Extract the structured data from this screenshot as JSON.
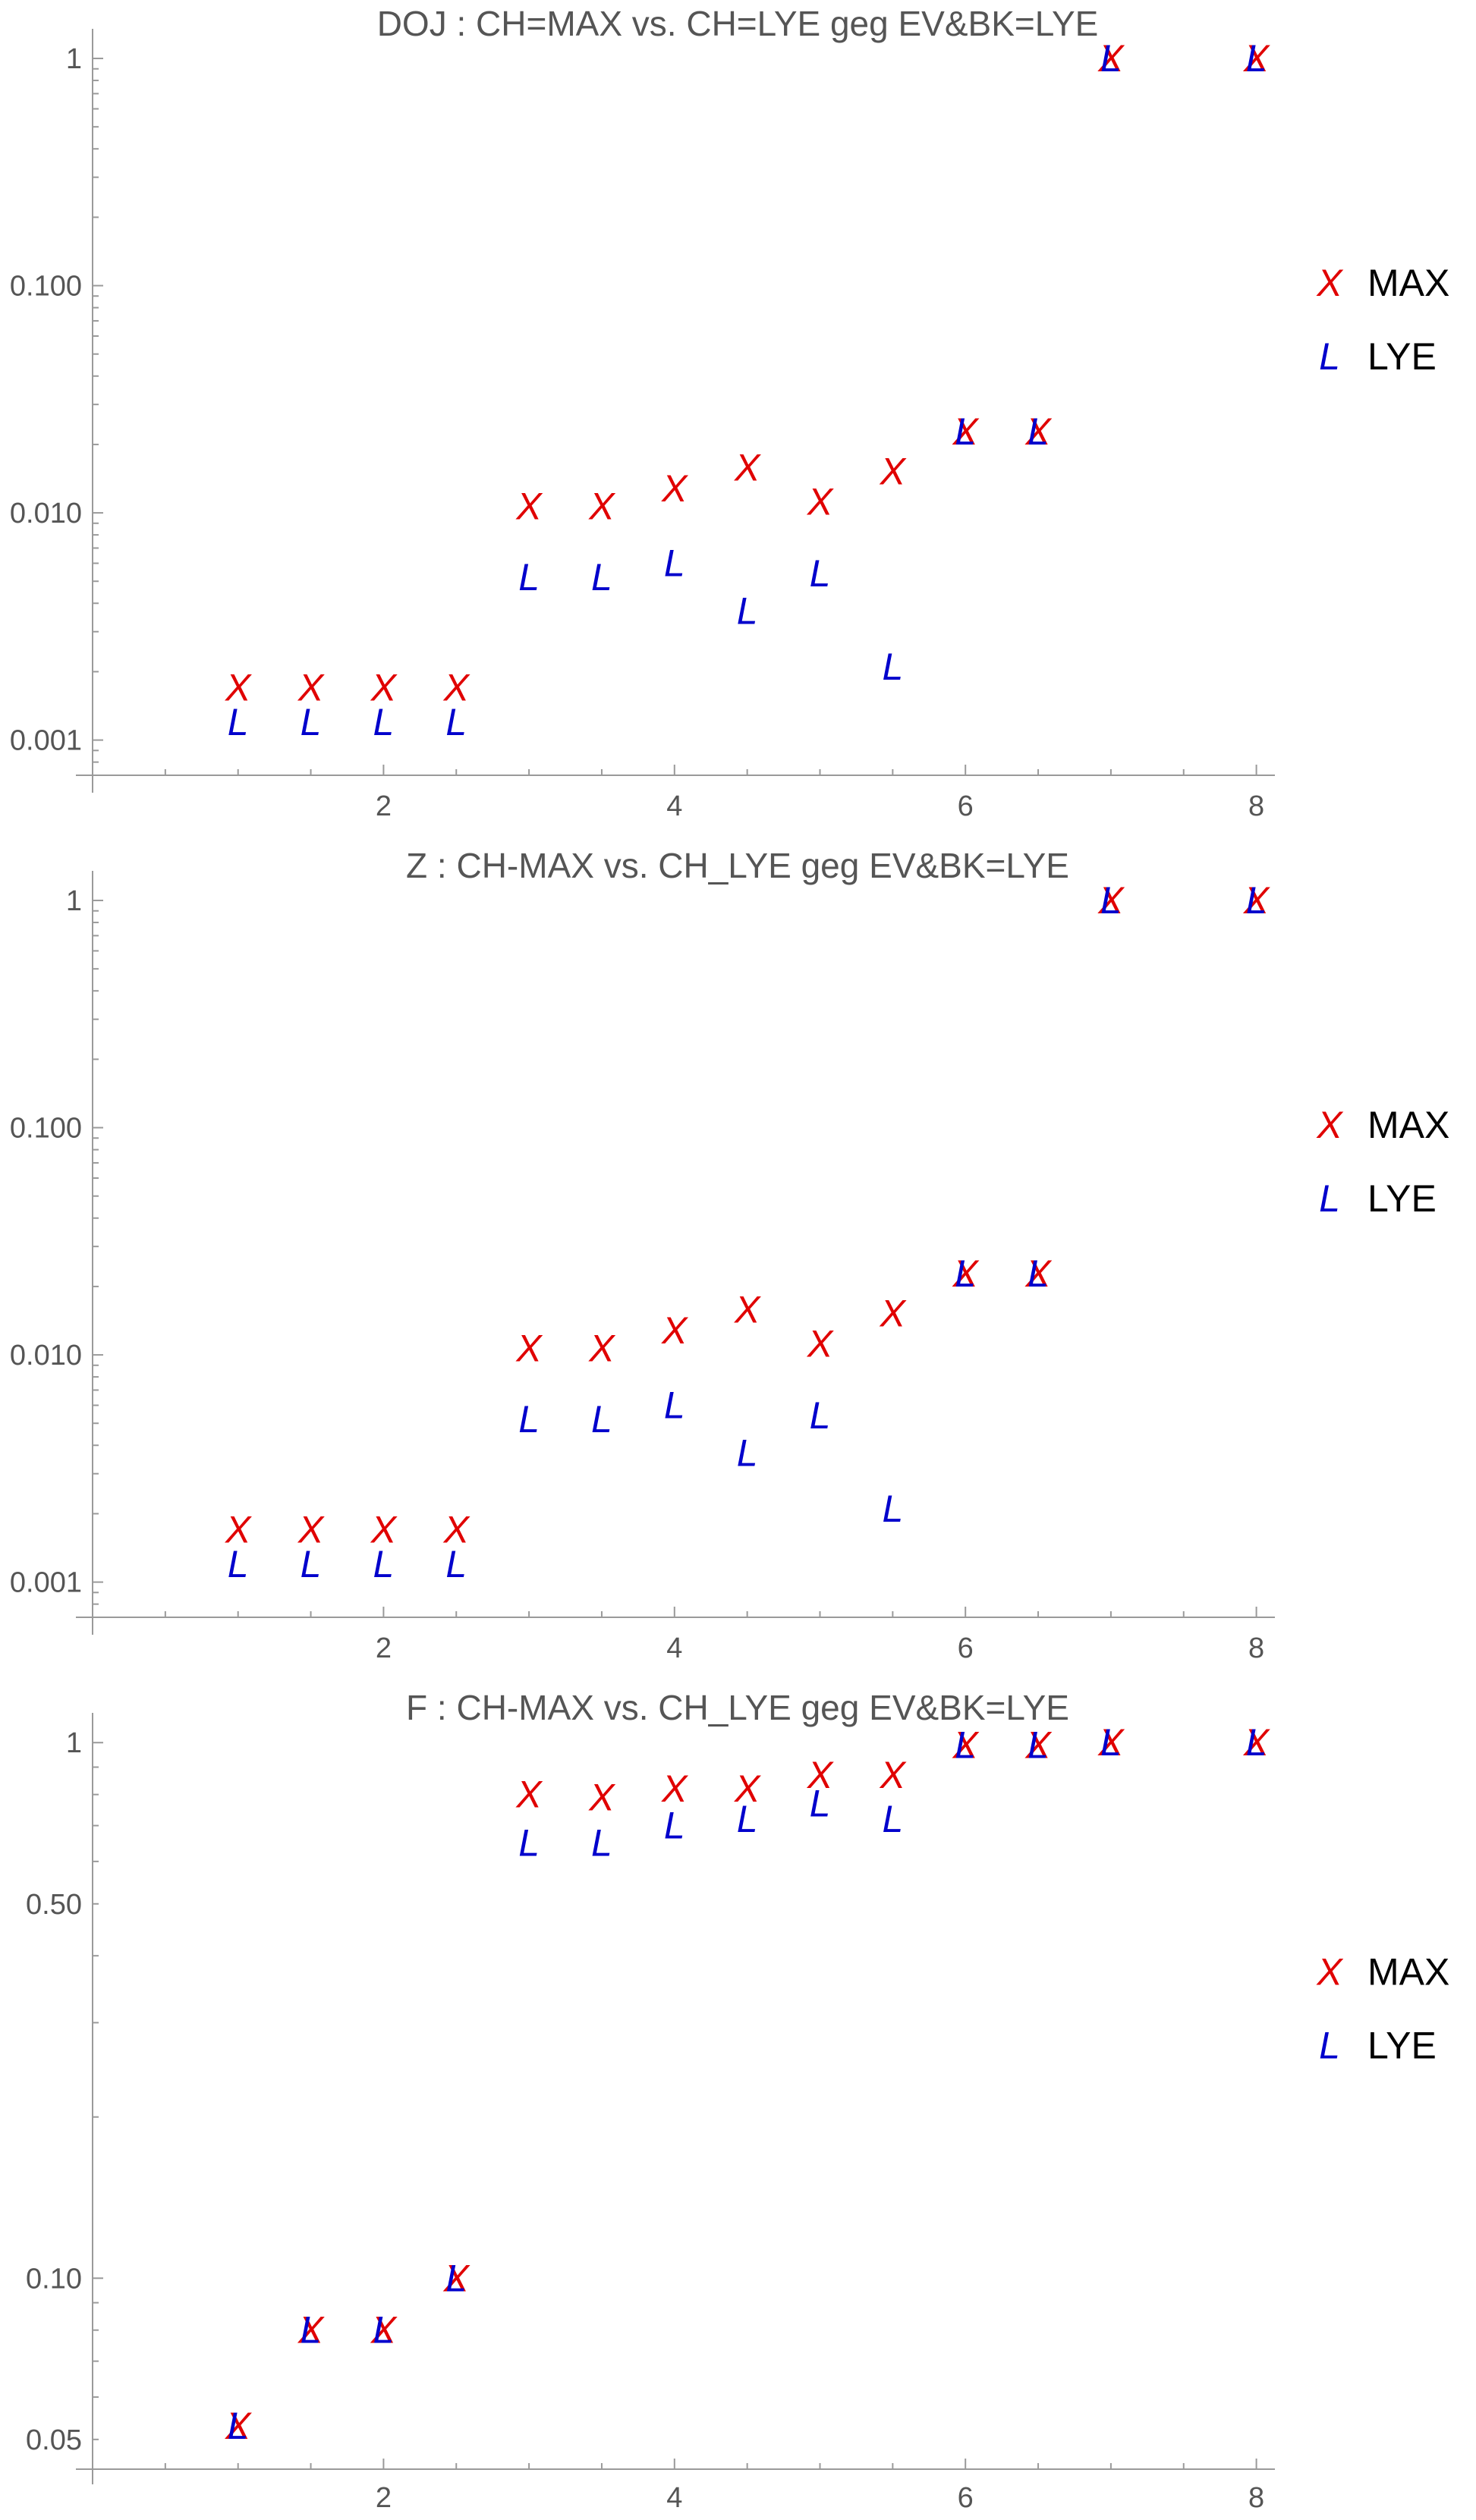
{
  "chart_data": [
    {
      "type": "scatter",
      "title": "DOJ : CH=MAX vs. CH=LYE geg EV&BK=LYE",
      "xlabel": "",
      "ylabel": "",
      "yscale": "log",
      "xlim": [
        0,
        8.1
      ],
      "ylim": [
        0.0007,
        1.25
      ],
      "xticks": [
        2,
        4,
        6,
        8
      ],
      "xtick_labels": [
        "2",
        "4",
        "6",
        "8"
      ],
      "yticks": [
        0.001,
        0.01,
        0.1,
        1
      ],
      "ytick_labels": [
        "0.001",
        "0.010",
        "0.100",
        "1"
      ],
      "legend_position": "right",
      "series": [
        {
          "name": "MAX",
          "marker": "X",
          "color": "#e00000",
          "x": [
            1,
            1.5,
            2,
            2.5,
            3,
            3.5,
            4,
            4.5,
            5,
            5.5,
            6,
            6.5,
            7,
            8
          ],
          "y": [
            0.0017,
            0.0017,
            0.0017,
            0.0017,
            0.0107,
            0.0107,
            0.0128,
            0.0158,
            0.0112,
            0.0152,
            0.0228,
            0.0228,
            1,
            1
          ]
        },
        {
          "name": "LYE",
          "marker": "L",
          "color": "#0000cc",
          "x": [
            1,
            1.5,
            2,
            2.5,
            3,
            3.5,
            4,
            4.5,
            5,
            5.5,
            6,
            6.5,
            7,
            8
          ],
          "y": [
            0.0012,
            0.0012,
            0.0012,
            0.0012,
            0.0052,
            0.0052,
            0.006,
            0.0037,
            0.0054,
            0.0021,
            0.0228,
            0.0228,
            1,
            1
          ]
        }
      ]
    },
    {
      "type": "scatter",
      "title": "Z : CH-MAX vs. CH_LYE geg EV&BK=LYE",
      "xlabel": "",
      "ylabel": "",
      "yscale": "log",
      "xlim": [
        0,
        8.1
      ],
      "ylim": [
        0.0007,
        1.25
      ],
      "xticks": [
        2,
        4,
        6,
        8
      ],
      "xtick_labels": [
        "2",
        "4",
        "6",
        "8"
      ],
      "yticks": [
        0.001,
        0.01,
        0.1,
        1
      ],
      "ytick_labels": [
        "0.001",
        "0.010",
        "0.100",
        "1"
      ],
      "legend_position": "right",
      "series": [
        {
          "name": "MAX",
          "marker": "X",
          "color": "#e00000",
          "x": [
            1,
            1.5,
            2,
            2.5,
            3,
            3.5,
            4,
            4.5,
            5,
            5.5,
            6,
            6.5,
            7,
            8
          ],
          "y": [
            0.0017,
            0.0017,
            0.0017,
            0.0017,
            0.0107,
            0.0107,
            0.0128,
            0.0158,
            0.0112,
            0.0152,
            0.0228,
            0.0228,
            1,
            1
          ]
        },
        {
          "name": "LYE",
          "marker": "L",
          "color": "#0000cc",
          "x": [
            1,
            1.5,
            2,
            2.5,
            3,
            3.5,
            4,
            4.5,
            5,
            5.5,
            6,
            6.5,
            7,
            8
          ],
          "y": [
            0.0012,
            0.0012,
            0.0012,
            0.0012,
            0.0052,
            0.0052,
            0.006,
            0.0037,
            0.0054,
            0.0021,
            0.0228,
            0.0228,
            1,
            1
          ]
        }
      ]
    },
    {
      "type": "scatter",
      "title": "F : CH-MAX vs. CH_LYE geg EV&BK=LYE",
      "xlabel": "",
      "ylabel": "",
      "yscale": "log",
      "xlim": [
        0,
        8.1
      ],
      "ylim": [
        0.044,
        1.1
      ],
      "xticks": [
        2,
        4,
        6,
        8
      ],
      "xtick_labels": [
        "2",
        "4",
        "6",
        "8"
      ],
      "yticks": [
        0.05,
        0.1,
        0.5,
        1
      ],
      "ytick_labels": [
        "0.05",
        "0.10",
        "0.50",
        "1"
      ],
      "legend_position": "right",
      "series": [
        {
          "name": "MAX",
          "marker": "X",
          "color": "#e00000",
          "x": [
            1,
            1.5,
            2,
            2.5,
            3,
            3.5,
            4,
            4.5,
            5,
            5.5,
            6,
            6.5,
            7,
            8
          ],
          "y": [
            0.053,
            0.08,
            0.08,
            0.1,
            0.8,
            0.79,
            0.82,
            0.82,
            0.87,
            0.87,
            0.99,
            0.99,
            1,
            1
          ]
        },
        {
          "name": "LYE",
          "marker": "L",
          "color": "#0000cc",
          "x": [
            1,
            1.5,
            2,
            2.5,
            3,
            3.5,
            4,
            4.5,
            5,
            5.5,
            6,
            6.5,
            7,
            8
          ],
          "y": [
            0.053,
            0.08,
            0.08,
            0.1,
            0.65,
            0.65,
            0.7,
            0.72,
            0.77,
            0.72,
            0.99,
            0.99,
            1,
            1
          ]
        }
      ]
    }
  ]
}
